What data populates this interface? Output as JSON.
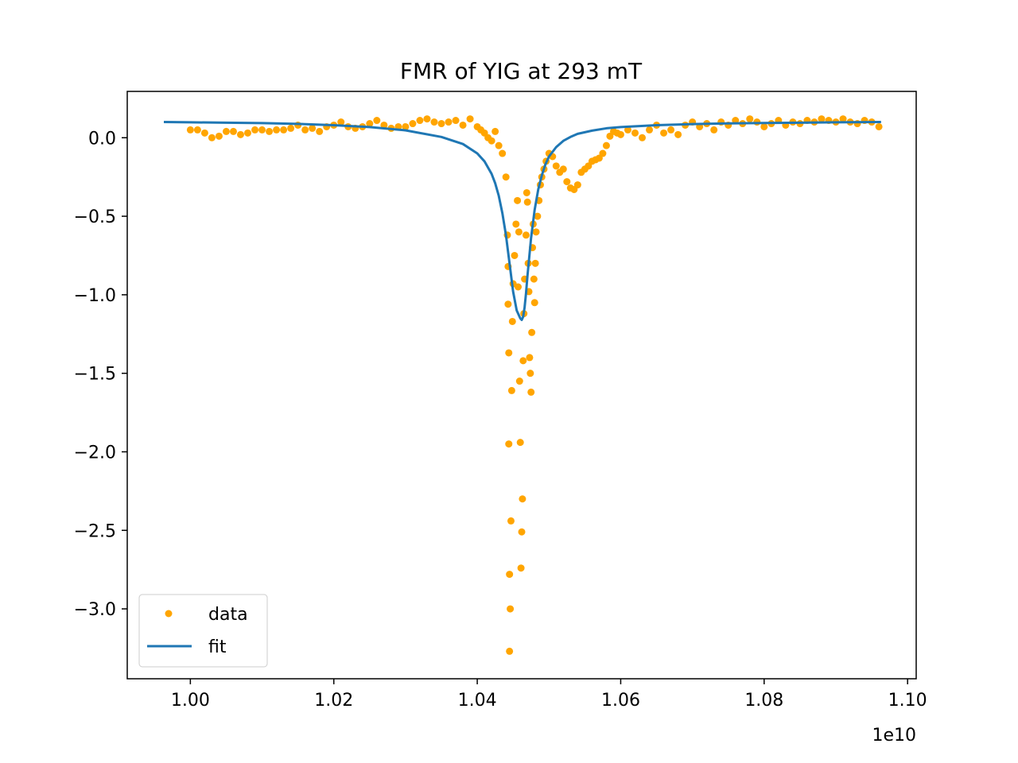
{
  "chart_data": {
    "type": "scatter",
    "title": "FMR of YIG at 293 mT",
    "xlabel": "",
    "ylabel": "",
    "x_offset_label": "1e10",
    "xlim": [
      0.9912,
      1.1012
    ],
    "ylim": [
      -3.445,
      0.295
    ],
    "x_ticks": [
      {
        "value": 1.0,
        "label": "1.00"
      },
      {
        "value": 1.02,
        "label": "1.02"
      },
      {
        "value": 1.04,
        "label": "1.04"
      },
      {
        "value": 1.06,
        "label": "1.06"
      },
      {
        "value": 1.08,
        "label": "1.08"
      },
      {
        "value": 1.1,
        "label": "1.10"
      }
    ],
    "y_ticks": [
      {
        "value": 0.0,
        "label": "0.0"
      },
      {
        "value": -0.5,
        "label": "−0.5"
      },
      {
        "value": -1.0,
        "label": "−1.0"
      },
      {
        "value": -1.5,
        "label": "−1.5"
      },
      {
        "value": -2.0,
        "label": "−2.0"
      },
      {
        "value": -2.5,
        "label": "−2.5"
      },
      {
        "value": -3.0,
        "label": "−3.0"
      }
    ],
    "grid": false,
    "legend": {
      "location": "lower-left",
      "entries": [
        "data",
        "fit"
      ]
    },
    "colors": {
      "data": "#ffa500",
      "fit": "#1f77b4"
    },
    "series": [
      {
        "name": "data",
        "kind": "scatter",
        "x": [
          1.0,
          1.001,
          1.002,
          1.003,
          1.004,
          1.005,
          1.006,
          1.007,
          1.008,
          1.009,
          1.01,
          1.011,
          1.012,
          1.013,
          1.014,
          1.015,
          1.016,
          1.017,
          1.018,
          1.019,
          1.02,
          1.021,
          1.022,
          1.023,
          1.024,
          1.025,
          1.026,
          1.027,
          1.028,
          1.029,
          1.03,
          1.031,
          1.032,
          1.033,
          1.034,
          1.035,
          1.036,
          1.037,
          1.038,
          1.039,
          1.04,
          1.0405,
          1.041,
          1.0415,
          1.042,
          1.0425,
          1.043,
          1.0435,
          1.044,
          1.0442,
          1.0443,
          1.0443,
          1.0444,
          1.0444,
          1.0445,
          1.0445,
          1.0446,
          1.0447,
          1.0448,
          1.0449,
          1.045,
          1.0452,
          1.0454,
          1.0456,
          1.0457,
          1.0458,
          1.0459,
          1.046,
          1.0461,
          1.0462,
          1.0463,
          1.0464,
          1.0465,
          1.0466,
          1.0468,
          1.0469,
          1.047,
          1.0471,
          1.0472,
          1.0473,
          1.0474,
          1.0475,
          1.0476,
          1.0477,
          1.0478,
          1.0479,
          1.048,
          1.0481,
          1.0482,
          1.0484,
          1.0486,
          1.0488,
          1.049,
          1.0493,
          1.0496,
          1.05,
          1.0505,
          1.051,
          1.0515,
          1.052,
          1.0525,
          1.053,
          1.0535,
          1.054,
          1.0545,
          1.055,
          1.0555,
          1.056,
          1.0565,
          1.057,
          1.0575,
          1.058,
          1.0585,
          1.059,
          1.0595,
          1.06,
          1.061,
          1.062,
          1.063,
          1.064,
          1.065,
          1.066,
          1.067,
          1.068,
          1.069,
          1.07,
          1.071,
          1.072,
          1.073,
          1.074,
          1.075,
          1.076,
          1.077,
          1.078,
          1.079,
          1.08,
          1.081,
          1.082,
          1.083,
          1.084,
          1.085,
          1.086,
          1.087,
          1.088,
          1.089,
          1.09,
          1.091,
          1.092,
          1.093,
          1.094,
          1.095,
          1.096
        ],
        "y": [
          0.05,
          0.05,
          0.03,
          0.0,
          0.01,
          0.04,
          0.04,
          0.02,
          0.03,
          0.05,
          0.05,
          0.04,
          0.05,
          0.05,
          0.06,
          0.08,
          0.05,
          0.06,
          0.04,
          0.07,
          0.08,
          0.1,
          0.07,
          0.06,
          0.07,
          0.09,
          0.11,
          0.08,
          0.06,
          0.07,
          0.07,
          0.09,
          0.11,
          0.12,
          0.1,
          0.09,
          0.1,
          0.11,
          0.08,
          0.12,
          0.07,
          0.05,
          0.03,
          0.0,
          -0.02,
          0.04,
          -0.05,
          -0.1,
          -0.25,
          -0.62,
          -0.82,
          -1.06,
          -1.37,
          -1.95,
          -2.78,
          -3.27,
          -3.0,
          -2.44,
          -1.61,
          -1.17,
          -0.93,
          -0.75,
          -0.55,
          -0.4,
          -0.95,
          -0.6,
          -1.55,
          -1.94,
          -2.74,
          -2.51,
          -2.3,
          -1.42,
          -1.12,
          -0.9,
          -0.62,
          -0.35,
          -0.41,
          -0.8,
          -0.98,
          -1.4,
          -1.5,
          -1.62,
          -1.24,
          -0.7,
          -0.55,
          -0.9,
          -1.05,
          -0.8,
          -0.6,
          -0.5,
          -0.4,
          -0.3,
          -0.25,
          -0.2,
          -0.15,
          -0.1,
          -0.12,
          -0.18,
          -0.22,
          -0.2,
          -0.28,
          -0.32,
          -0.33,
          -0.3,
          -0.22,
          -0.2,
          -0.18,
          -0.15,
          -0.14,
          -0.13,
          -0.1,
          -0.05,
          0.01,
          0.04,
          0.03,
          0.02,
          0.05,
          0.03,
          0.0,
          0.05,
          0.08,
          0.03,
          0.05,
          0.02,
          0.08,
          0.1,
          0.07,
          0.09,
          0.05,
          0.1,
          0.08,
          0.11,
          0.09,
          0.12,
          0.1,
          0.07,
          0.09,
          0.11,
          0.08,
          0.1,
          0.09,
          0.11,
          0.1,
          0.12,
          0.11,
          0.1,
          0.12,
          0.1,
          0.09,
          0.11,
          0.1,
          0.07
        ]
      },
      {
        "name": "fit",
        "kind": "line",
        "x": [
          0.9963,
          1.0,
          1.005,
          1.01,
          1.015,
          1.02,
          1.025,
          1.03,
          1.035,
          1.038,
          1.04,
          1.041,
          1.042,
          1.0425,
          1.043,
          1.0435,
          1.044,
          1.0445,
          1.045,
          1.0455,
          1.046,
          1.0462,
          1.0464,
          1.0466,
          1.0468,
          1.047,
          1.0475,
          1.048,
          1.0485,
          1.049,
          1.0495,
          1.05,
          1.051,
          1.052,
          1.053,
          1.054,
          1.056,
          1.058,
          1.06,
          1.065,
          1.07,
          1.075,
          1.08,
          1.085,
          1.09,
          1.0963
        ],
        "y": [
          0.1,
          0.098,
          0.096,
          0.093,
          0.088,
          0.08,
          0.068,
          0.047,
          0.005,
          -0.04,
          -0.1,
          -0.15,
          -0.23,
          -0.29,
          -0.37,
          -0.48,
          -0.62,
          -0.8,
          -0.98,
          -1.1,
          -1.15,
          -1.16,
          -1.14,
          -1.08,
          -0.99,
          -0.88,
          -0.64,
          -0.46,
          -0.33,
          -0.24,
          -0.17,
          -0.12,
          -0.06,
          -0.02,
          0.005,
          0.025,
          0.045,
          0.06,
          0.068,
          0.08,
          0.087,
          0.091,
          0.094,
          0.096,
          0.098,
          0.1
        ]
      }
    ]
  }
}
